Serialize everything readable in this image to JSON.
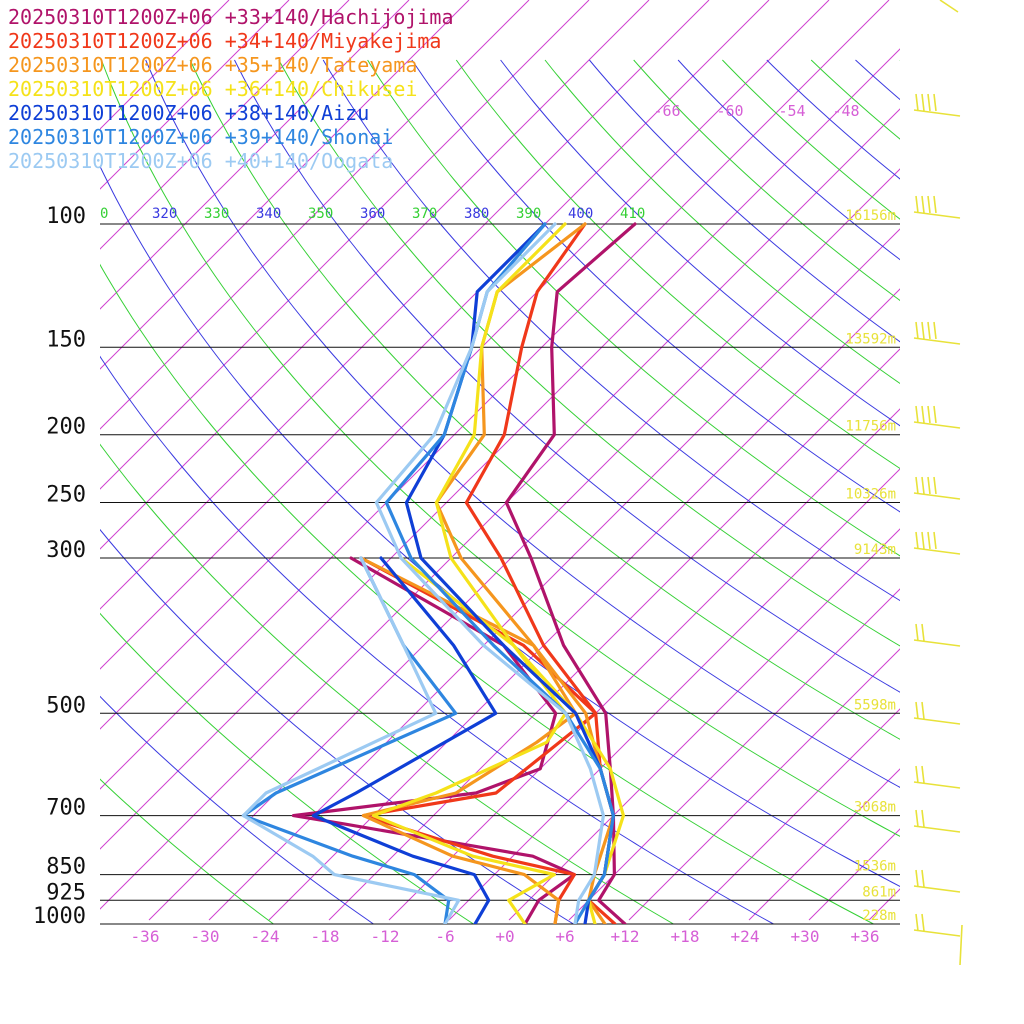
{
  "chart_data": {
    "type": "line",
    "title": "",
    "xlabel": "",
    "ylabel": "",
    "x_axis_type": "skewT",
    "y_axis_scale": "log-pressure",
    "ylim": [
      1000,
      100
    ],
    "xlim": [
      -40,
      40
    ],
    "pressure_ticks": [
      {
        "p": 100,
        "label": "100",
        "height": "16156m"
      },
      {
        "p": 150,
        "label": "150",
        "height": "13592m"
      },
      {
        "p": 200,
        "label": "200",
        "height": "11756m"
      },
      {
        "p": 250,
        "label": "250",
        "height": "10326m"
      },
      {
        "p": 300,
        "label": "300",
        "height": "9143m"
      },
      {
        "p": 500,
        "label": "500",
        "height": "5598m"
      },
      {
        "p": 700,
        "label": "700",
        "height": "3068m"
      },
      {
        "p": 850,
        "label": "850",
        "height": "1536m"
      },
      {
        "p": 925,
        "label": "925",
        "height": "861m"
      },
      {
        "p": 1000,
        "label": "1000",
        "height": "228m"
      }
    ],
    "temperature_ticks": [
      {
        "t": -36,
        "label": "-36"
      },
      {
        "t": -30,
        "label": "-30"
      },
      {
        "t": -24,
        "label": "-24"
      },
      {
        "t": -18,
        "label": "-18"
      },
      {
        "t": -12,
        "label": "-12"
      },
      {
        "t": -6,
        "label": "-6"
      },
      {
        "t": 0,
        "label": "+0"
      },
      {
        "t": 6,
        "label": "+6"
      },
      {
        "t": 12,
        "label": "+12"
      },
      {
        "t": 18,
        "label": "+18"
      },
      {
        "t": 24,
        "label": "+24"
      },
      {
        "t": 30,
        "label": "+30"
      },
      {
        "t": 36,
        "label": "+36"
      }
    ],
    "upper_temperature_labels": [
      {
        "t": -66,
        "label": "-66"
      },
      {
        "t": -60,
        "label": "-60"
      },
      {
        "t": -54,
        "label": "-54"
      },
      {
        "t": -48,
        "label": "-48"
      }
    ],
    "theta_labels": [
      {
        "label": "0",
        "color": "#35d035"
      },
      {
        "label": "320",
        "color": "#3a3ae0"
      },
      {
        "label": "330",
        "color": "#35d035"
      },
      {
        "label": "340",
        "color": "#3a3ae0"
      },
      {
        "label": "350",
        "color": "#35d035"
      },
      {
        "label": "360",
        "color": "#3a3ae0"
      },
      {
        "label": "370",
        "color": "#35d035"
      },
      {
        "label": "380",
        "color": "#3a3ae0"
      },
      {
        "label": "390",
        "color": "#35d035"
      },
      {
        "label": "400",
        "color": "#3a3ae0"
      },
      {
        "label": "410",
        "color": "#35d035"
      }
    ],
    "series": [
      {
        "name": "20250310T1200Z+06 +33+140/Hachijojima",
        "color": "#b0136a",
        "temperature": [
          [
            1000,
            12
          ],
          [
            925,
            7
          ],
          [
            850,
            6
          ],
          [
            700,
            0
          ],
          [
            600,
            -5
          ],
          [
            500,
            -11
          ],
          [
            400,
            -22
          ],
          [
            300,
            -34
          ],
          [
            250,
            -42
          ],
          [
            200,
            -44
          ],
          [
            150,
            -53
          ],
          [
            125,
            -58
          ],
          [
            100,
            -57
          ]
        ],
        "dewpoint": [
          [
            1000,
            2
          ],
          [
            925,
            1
          ],
          [
            850,
            2
          ],
          [
            800,
            -4
          ],
          [
            720,
            -26
          ],
          [
            700,
            -32
          ],
          [
            650,
            -16
          ],
          [
            600,
            -12
          ],
          [
            500,
            -16
          ],
          [
            400,
            -28
          ],
          [
            300,
            -52
          ]
        ]
      },
      {
        "name": "20250310T1200Z+06 +34+140/Miyakejima",
        "color": "#f0381a",
        "temperature": [
          [
            1000,
            11
          ],
          [
            925,
            6
          ],
          [
            850,
            5
          ],
          [
            700,
            0
          ],
          [
            600,
            -6
          ],
          [
            500,
            -12
          ],
          [
            400,
            -24
          ],
          [
            300,
            -37
          ],
          [
            250,
            -46
          ],
          [
            200,
            -49
          ],
          [
            150,
            -56
          ],
          [
            125,
            -60
          ],
          [
            100,
            -62
          ]
        ],
        "dewpoint": [
          [
            1000,
            5
          ],
          [
            925,
            3
          ],
          [
            850,
            2
          ],
          [
            800,
            -8
          ],
          [
            700,
            -25
          ],
          [
            650,
            -14
          ],
          [
            500,
            -12
          ],
          [
            400,
            -26
          ],
          [
            300,
            -51
          ]
        ]
      },
      {
        "name": "20250310T1200Z+06 +35+140/Tateyama",
        "color": "#f5961e",
        "temperature": [
          [
            1000,
            10
          ],
          [
            925,
            6
          ],
          [
            850,
            4
          ],
          [
            700,
            0
          ],
          [
            600,
            -6
          ],
          [
            500,
            -13
          ],
          [
            400,
            -25
          ],
          [
            300,
            -41
          ],
          [
            250,
            -49
          ],
          [
            200,
            -51
          ],
          [
            150,
            -60
          ],
          [
            125,
            -64
          ],
          [
            100,
            -62
          ]
        ],
        "dewpoint": [
          [
            1000,
            5
          ],
          [
            925,
            3
          ],
          [
            850,
            -3
          ],
          [
            800,
            -12
          ],
          [
            700,
            -25
          ],
          [
            650,
            -18
          ],
          [
            550,
            -15
          ],
          [
            500,
            -14
          ],
          [
            400,
            -25
          ],
          [
            300,
            -51
          ]
        ]
      },
      {
        "name": "20250310T1200Z+06 +36+140/Chikusei",
        "color": "#f5e21a",
        "temperature": [
          [
            1000,
            9
          ],
          [
            925,
            6
          ],
          [
            850,
            5
          ],
          [
            700,
            1
          ],
          [
            600,
            -5
          ],
          [
            500,
            -14
          ],
          [
            400,
            -27
          ],
          [
            300,
            -42
          ],
          [
            250,
            -49
          ],
          [
            200,
            -52
          ],
          [
            150,
            -60
          ],
          [
            125,
            -64
          ],
          [
            100,
            -64
          ]
        ],
        "dewpoint": [
          [
            1000,
            2
          ],
          [
            925,
            -2
          ],
          [
            850,
            0
          ],
          [
            800,
            -10
          ],
          [
            700,
            -24
          ],
          [
            650,
            -20
          ],
          [
            550,
            -14
          ],
          [
            500,
            -15
          ],
          [
            400,
            -27
          ],
          [
            300,
            -47
          ]
        ]
      },
      {
        "name": "20250310T1200Z+06 +38+140/Aizu",
        "color": "#0f3fd6",
        "temperature": [
          [
            1000,
            8
          ],
          [
            925,
            6
          ],
          [
            850,
            5
          ],
          [
            700,
            0
          ],
          [
            600,
            -6
          ],
          [
            500,
            -14
          ],
          [
            400,
            -28
          ],
          [
            300,
            -45
          ],
          [
            250,
            -52
          ],
          [
            200,
            -55
          ],
          [
            150,
            -61
          ],
          [
            125,
            -66
          ],
          [
            100,
            -66
          ]
        ],
        "dewpoint": [
          [
            1000,
            -3
          ],
          [
            925,
            -4
          ],
          [
            850,
            -8
          ],
          [
            800,
            -16
          ],
          [
            700,
            -30
          ],
          [
            650,
            -28
          ],
          [
            500,
            -22
          ],
          [
            400,
            -33
          ],
          [
            300,
            -49
          ]
        ]
      },
      {
        "name": "20250310T1200Z+06 +39+140/Shonai",
        "color": "#2e86e0",
        "temperature": [
          [
            1000,
            7
          ],
          [
            925,
            6
          ],
          [
            850,
            5
          ],
          [
            700,
            0
          ],
          [
            600,
            -6
          ],
          [
            500,
            -15
          ],
          [
            400,
            -29
          ],
          [
            300,
            -46
          ],
          [
            250,
            -54
          ],
          [
            200,
            -55
          ],
          [
            150,
            -61
          ],
          [
            125,
            -65
          ],
          [
            100,
            -66
          ]
        ],
        "dewpoint": [
          [
            1000,
            -6
          ],
          [
            925,
            -8
          ],
          [
            850,
            -14
          ],
          [
            800,
            -22
          ],
          [
            700,
            -37
          ],
          [
            650,
            -36
          ],
          [
            500,
            -26
          ],
          [
            400,
            -38
          ],
          [
            300,
            -51
          ]
        ]
      },
      {
        "name": "20250310T1200Z+06 +40+140/Oogata",
        "color": "#9ccaf2",
        "temperature": [
          [
            1000,
            7
          ],
          [
            925,
            5
          ],
          [
            850,
            4
          ],
          [
            700,
            -1
          ],
          [
            600,
            -7
          ],
          [
            500,
            -15
          ],
          [
            400,
            -30
          ],
          [
            300,
            -47
          ],
          [
            250,
            -55
          ],
          [
            200,
            -56
          ],
          [
            150,
            -61
          ],
          [
            125,
            -65
          ],
          [
            100,
            -65
          ]
        ],
        "dewpoint": [
          [
            1000,
            -6
          ],
          [
            925,
            -7
          ],
          [
            850,
            -22
          ],
          [
            800,
            -26
          ],
          [
            700,
            -37
          ],
          [
            650,
            -37
          ],
          [
            500,
            -28
          ],
          [
            400,
            -38
          ],
          [
            300,
            -51
          ]
        ]
      }
    ],
    "wind_barb_color": "#e8e23a"
  }
}
